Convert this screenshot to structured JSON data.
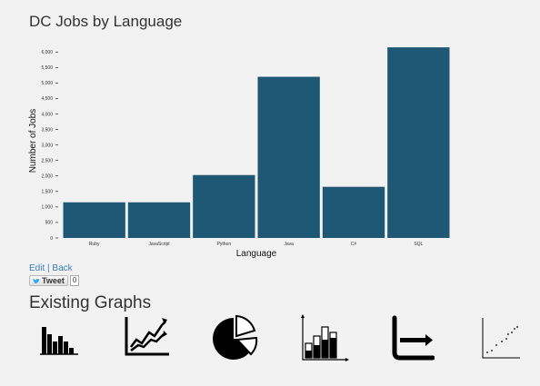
{
  "page": {
    "title": "DC Jobs by Language",
    "edit_label": "Edit",
    "separator": "|",
    "back_label": "Back",
    "tweet_label": "Tweet",
    "tweet_count": "0",
    "existing_title": "Existing Graphs"
  },
  "thumbnails": [
    {
      "icon": "bar-chart-icon"
    },
    {
      "icon": "line-chart-icon"
    },
    {
      "icon": "pie-chart-icon"
    },
    {
      "icon": "column-chart-icon"
    },
    {
      "icon": "horizontal-bar-chart-icon"
    },
    {
      "icon": "scatter-plot-icon"
    }
  ],
  "chart_data": {
    "type": "bar",
    "title": "DC Jobs by Language",
    "xlabel": "Language",
    "ylabel": "Number of Jobs",
    "categories": [
      "Ruby",
      "JavaScript",
      "Python",
      "Java",
      "C#",
      "SQL"
    ],
    "values": [
      1150,
      1150,
      2030,
      5200,
      1650,
      6150
    ],
    "ylim": [
      0,
      6300
    ],
    "yticks": [
      0,
      500,
      1000,
      1500,
      2000,
      2500,
      3000,
      3500,
      4000,
      4500,
      5000,
      5500,
      6000
    ],
    "ytick_labels": [
      "0",
      "500",
      "1,000",
      "1,500",
      "2,000",
      "2,500",
      "3,000",
      "3,500",
      "4,000",
      "4,500",
      "5,000",
      "5,500",
      "6,000"
    ],
    "bar_color": "#1f5874",
    "grid": false,
    "legend": "none"
  }
}
